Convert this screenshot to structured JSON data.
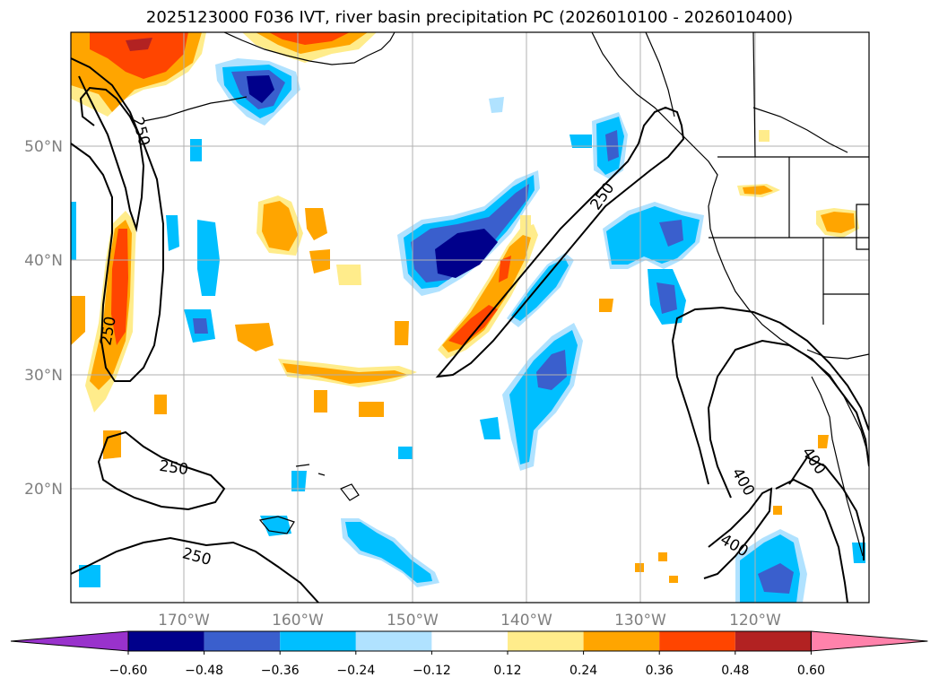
{
  "title": "2025123000 F036 IVT, river basin precipitation PC (2026010100 - 2026010400)",
  "map": {
    "lon_labels": [
      "170°W",
      "160°W",
      "150°W",
      "140°W",
      "130°W",
      "120°W"
    ],
    "lat_labels": [
      "50°N",
      "40°N",
      "30°N",
      "20°N"
    ],
    "contour_labels": [
      "250",
      "250",
      "250",
      "250",
      "250",
      "400",
      "400",
      "400"
    ],
    "contour_levels": [
      250,
      400
    ],
    "gridlines": true
  },
  "colorbar": {
    "ticks": [
      "−0.60",
      "−0.48",
      "−0.36",
      "−0.24",
      "−0.12",
      "0.12",
      "0.24",
      "0.36",
      "0.48",
      "0.60"
    ],
    "colors": [
      "#9932CC",
      "#00008B",
      "#3A5FCD",
      "#00BFFF",
      "#B0E2FF",
      "#FFFFFF",
      "#FFEC8B",
      "#FFA500",
      "#FF4500",
      "#B22222",
      "#FF82AB"
    ],
    "extend": "both"
  }
}
